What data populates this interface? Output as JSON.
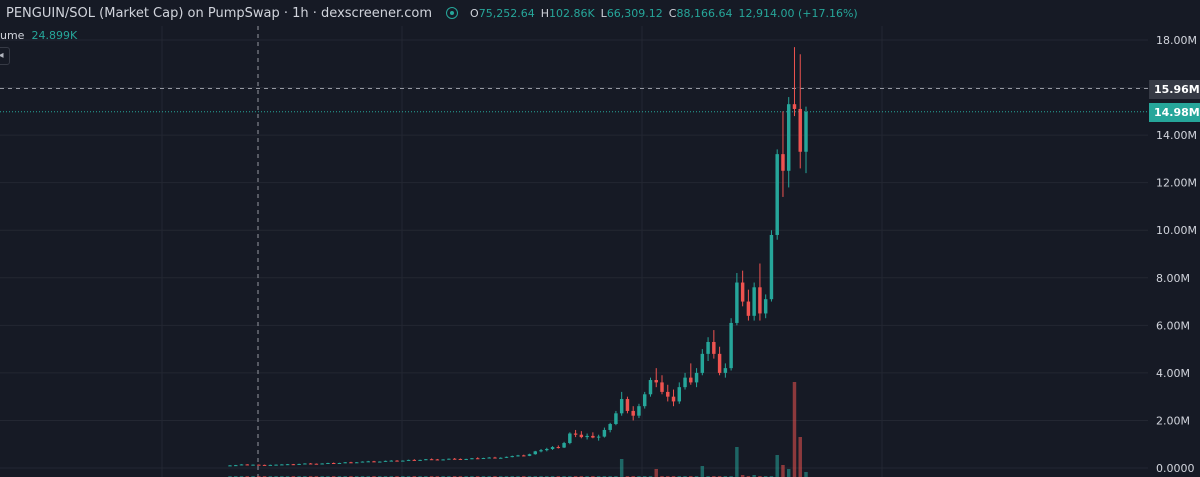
{
  "header": {
    "title": "PENGUIN/SOL (Market Cap) on PumpSwap · 1h · dexscreener.com",
    "ohlc": [
      {
        "key": "O",
        "value": "75,252.64"
      },
      {
        "key": "H",
        "value": "102.86K"
      },
      {
        "key": "L",
        "value": "66,309.12"
      },
      {
        "key": "C",
        "value": "88,166.64"
      }
    ],
    "change": "12,914.00 (+17.16%)"
  },
  "volume": {
    "label": "ume",
    "value": "24.899K"
  },
  "collapse_icon": "chevron-left-icon",
  "price_tags": {
    "crosshair": "15.96M",
    "last": "14.98M"
  },
  "colors": {
    "up": "#26a69a",
    "down": "#ef5350",
    "background": "#161a25",
    "grid": "#232732"
  },
  "chart_data": {
    "type": "candlestick",
    "y_unit": "market cap (M)",
    "ylim": [
      0,
      18.6
    ],
    "y_ticks": [
      "18.00M",
      "16.00M",
      "14.00M",
      "12.00M",
      "10.00M",
      "8.00M",
      "6.00M",
      "4.00M",
      "2.00M",
      "0.0000"
    ],
    "y_tick_values": [
      18,
      16,
      14,
      12,
      10,
      8,
      6,
      4,
      2,
      0
    ],
    "crosshair_value": 15.96,
    "last_value": 14.98,
    "grid": true,
    "candles": [
      [
        0.1,
        0.12,
        0.09,
        0.11
      ],
      [
        0.11,
        0.13,
        0.1,
        0.12
      ],
      [
        0.12,
        0.16,
        0.11,
        0.15
      ],
      [
        0.15,
        0.16,
        0.12,
        0.13
      ],
      [
        0.13,
        0.15,
        0.12,
        0.14
      ],
      [
        0.14,
        0.15,
        0.12,
        0.13
      ],
      [
        0.13,
        0.14,
        0.12,
        0.12
      ],
      [
        0.12,
        0.14,
        0.11,
        0.13
      ],
      [
        0.13,
        0.15,
        0.12,
        0.14
      ],
      [
        0.14,
        0.16,
        0.13,
        0.15
      ],
      [
        0.15,
        0.17,
        0.14,
        0.16
      ],
      [
        0.16,
        0.17,
        0.14,
        0.15
      ],
      [
        0.15,
        0.18,
        0.14,
        0.17
      ],
      [
        0.17,
        0.2,
        0.16,
        0.19
      ],
      [
        0.19,
        0.21,
        0.17,
        0.18
      ],
      [
        0.18,
        0.19,
        0.16,
        0.17
      ],
      [
        0.17,
        0.2,
        0.16,
        0.19
      ],
      [
        0.19,
        0.22,
        0.18,
        0.21
      ],
      [
        0.21,
        0.23,
        0.19,
        0.2
      ],
      [
        0.2,
        0.22,
        0.19,
        0.21
      ],
      [
        0.21,
        0.25,
        0.2,
        0.24
      ],
      [
        0.24,
        0.26,
        0.22,
        0.23
      ],
      [
        0.23,
        0.25,
        0.21,
        0.24
      ],
      [
        0.24,
        0.28,
        0.23,
        0.27
      ],
      [
        0.27,
        0.3,
        0.25,
        0.28
      ],
      [
        0.28,
        0.3,
        0.25,
        0.26
      ],
      [
        0.26,
        0.28,
        0.24,
        0.27
      ],
      [
        0.27,
        0.31,
        0.26,
        0.3
      ],
      [
        0.3,
        0.33,
        0.28,
        0.31
      ],
      [
        0.31,
        0.33,
        0.29,
        0.3
      ],
      [
        0.3,
        0.32,
        0.28,
        0.31
      ],
      [
        0.31,
        0.35,
        0.3,
        0.34
      ],
      [
        0.34,
        0.37,
        0.32,
        0.33
      ],
      [
        0.33,
        0.35,
        0.31,
        0.34
      ],
      [
        0.34,
        0.38,
        0.33,
        0.37
      ],
      [
        0.37,
        0.4,
        0.35,
        0.36
      ],
      [
        0.36,
        0.38,
        0.34,
        0.35
      ],
      [
        0.35,
        0.37,
        0.33,
        0.36
      ],
      [
        0.36,
        0.4,
        0.35,
        0.39
      ],
      [
        0.39,
        0.42,
        0.37,
        0.38
      ],
      [
        0.38,
        0.4,
        0.36,
        0.37
      ],
      [
        0.37,
        0.39,
        0.35,
        0.38
      ],
      [
        0.38,
        0.42,
        0.37,
        0.41
      ],
      [
        0.41,
        0.45,
        0.39,
        0.4
      ],
      [
        0.4,
        0.43,
        0.38,
        0.42
      ],
      [
        0.42,
        0.46,
        0.4,
        0.44
      ],
      [
        0.44,
        0.47,
        0.41,
        0.42
      ],
      [
        0.42,
        0.45,
        0.4,
        0.43
      ],
      [
        0.43,
        0.48,
        0.42,
        0.47
      ],
      [
        0.47,
        0.52,
        0.45,
        0.5
      ],
      [
        0.5,
        0.55,
        0.48,
        0.53
      ],
      [
        0.53,
        0.56,
        0.49,
        0.51
      ],
      [
        0.51,
        0.6,
        0.5,
        0.58
      ],
      [
        0.58,
        0.72,
        0.56,
        0.7
      ],
      [
        0.7,
        0.8,
        0.66,
        0.75
      ],
      [
        0.75,
        0.85,
        0.7,
        0.8
      ],
      [
        0.8,
        0.92,
        0.76,
        0.88
      ],
      [
        0.88,
        0.95,
        0.82,
        0.86
      ],
      [
        0.86,
        1.1,
        0.84,
        1.05
      ],
      [
        1.05,
        1.5,
        1.0,
        1.45
      ],
      [
        1.45,
        1.6,
        1.3,
        1.4
      ],
      [
        1.4,
        1.55,
        1.25,
        1.3
      ],
      [
        1.3,
        1.45,
        1.2,
        1.35
      ],
      [
        1.35,
        1.5,
        1.25,
        1.28
      ],
      [
        1.28,
        1.4,
        1.15,
        1.32
      ],
      [
        1.32,
        1.7,
        1.28,
        1.6
      ],
      [
        1.6,
        1.9,
        1.5,
        1.85
      ],
      [
        1.85,
        2.4,
        1.8,
        2.3
      ],
      [
        2.3,
        3.2,
        2.2,
        2.9
      ],
      [
        2.9,
        3.0,
        2.3,
        2.4
      ],
      [
        2.4,
        2.6,
        2.0,
        2.2
      ],
      [
        2.2,
        2.7,
        2.1,
        2.6
      ],
      [
        2.6,
        3.2,
        2.5,
        3.1
      ],
      [
        3.1,
        3.8,
        3.0,
        3.7
      ],
      [
        3.7,
        4.2,
        3.4,
        3.6
      ],
      [
        3.6,
        3.9,
        3.1,
        3.2
      ],
      [
        3.2,
        3.5,
        2.8,
        3.0
      ],
      [
        3.0,
        3.3,
        2.6,
        2.8
      ],
      [
        2.8,
        3.6,
        2.7,
        3.4
      ],
      [
        3.4,
        4.0,
        3.3,
        3.8
      ],
      [
        3.8,
        4.4,
        3.5,
        3.6
      ],
      [
        3.6,
        4.2,
        3.4,
        4.0
      ],
      [
        4.0,
        5.0,
        3.9,
        4.8
      ],
      [
        4.8,
        5.5,
        4.5,
        5.3
      ],
      [
        5.3,
        5.8,
        4.6,
        4.8
      ],
      [
        4.8,
        5.1,
        3.9,
        4.0
      ],
      [
        4.0,
        4.4,
        3.8,
        4.2
      ],
      [
        4.2,
        6.3,
        4.1,
        6.1
      ],
      [
        6.1,
        8.2,
        6.0,
        7.8
      ],
      [
        7.8,
        8.3,
        6.8,
        7.0
      ],
      [
        7.0,
        7.5,
        6.2,
        6.4
      ],
      [
        6.4,
        7.8,
        6.2,
        7.6
      ],
      [
        7.6,
        8.6,
        6.2,
        6.5
      ],
      [
        6.5,
        7.3,
        6.3,
        7.1
      ],
      [
        7.1,
        10.0,
        7.0,
        9.8
      ],
      [
        9.8,
        13.4,
        9.6,
        13.2
      ],
      [
        13.2,
        15.0,
        11.4,
        12.5
      ],
      [
        12.5,
        15.6,
        11.8,
        15.3
      ],
      [
        15.3,
        17.7,
        14.8,
        15.1
      ],
      [
        15.1,
        17.4,
        12.6,
        13.3
      ],
      [
        13.3,
        15.2,
        12.4,
        14.98
      ]
    ],
    "volume": [
      0.002,
      0.002,
      0.002,
      0.002,
      0.002,
      0.002,
      0.002,
      0.002,
      0.002,
      0.002,
      0.002,
      0.002,
      0.002,
      0.002,
      0.002,
      0.002,
      0.002,
      0.002,
      0.002,
      0.002,
      0.002,
      0.002,
      0.002,
      0.002,
      0.002,
      0.002,
      0.002,
      0.002,
      0.002,
      0.002,
      0.002,
      0.002,
      0.002,
      0.002,
      0.002,
      0.002,
      0.002,
      0.002,
      0.002,
      0.002,
      0.002,
      0.002,
      0.002,
      0.002,
      0.002,
      0.002,
      0.002,
      0.002,
      0.002,
      0.002,
      0.002,
      0.002,
      0.002,
      0.002,
      0.002,
      0.002,
      0.002,
      0.002,
      0.002,
      0.002,
      0.002,
      0.002,
      0.002,
      0.002,
      0.002,
      0.002,
      0.002,
      0.002,
      0.18,
      0.003,
      0.002,
      0.002,
      0.002,
      0.002,
      0.08,
      0.003,
      0.002,
      0.002,
      0.002,
      0.002,
      0.002,
      0.002,
      0.11,
      0.002,
      0.002,
      0.003,
      0.003,
      0.002,
      0.3,
      0.02,
      0.002,
      0.02,
      0.003,
      0.002,
      0.002,
      0.22,
      0.12,
      0.08,
      0.95,
      0.4,
      0.05
    ]
  }
}
